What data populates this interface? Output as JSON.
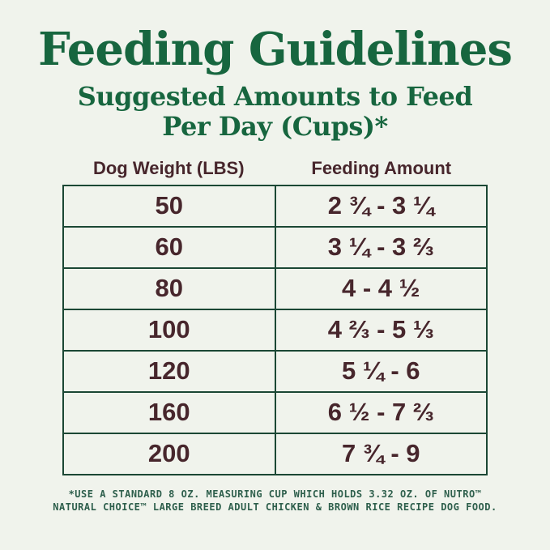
{
  "header": {
    "title": "Feeding Guidelines",
    "subtitle_line1": "Suggested Amounts to Feed",
    "subtitle_line2": "Per Day (Cups)*"
  },
  "table": {
    "col1_header": "Dog Weight (LBS)",
    "col2_header": "Feeding Amount",
    "rows": [
      {
        "weight": "50",
        "amount": "2 ¾ - 3 ¼"
      },
      {
        "weight": "60",
        "amount": "3 ¼ - 3 ⅔"
      },
      {
        "weight": "80",
        "amount": "4 - 4 ½"
      },
      {
        "weight": "100",
        "amount": "4 ⅔ - 5 ⅓"
      },
      {
        "weight": "120",
        "amount": "5 ¼ - 6"
      },
      {
        "weight": "160",
        "amount": "6 ½ - 7 ⅔"
      },
      {
        "weight": "200",
        "amount": "7 ¾ - 9"
      }
    ]
  },
  "footnote": {
    "line1": "*USE A STANDARD 8 OZ. MEASURING CUP WHICH HOLDS 3.32 OZ. OF NUTRO™",
    "line2": "NATURAL CHOICE™ LARGE BREED ADULT CHICKEN & BROWN RICE RECIPE DOG FOOD."
  },
  "colors": {
    "background": "#f0f3ec",
    "title_green": "#17663f",
    "table_border_green": "#1b4734",
    "text_maroon": "#47262c",
    "footnote_green": "#2e5f4c"
  },
  "chart_data": {
    "type": "table",
    "title": "Feeding Guidelines",
    "subtitle": "Suggested Amounts to Feed Per Day (Cups)*",
    "columns": [
      "Dog Weight (LBS)",
      "Feeding Amount"
    ],
    "rows": [
      [
        "50",
        "2 ¾ - 3 ¼"
      ],
      [
        "60",
        "3 ¼ - 3 ⅔"
      ],
      [
        "80",
        "4 - 4 ½"
      ],
      [
        "100",
        "4 ⅔ - 5 ⅓"
      ],
      [
        "120",
        "5 ¼ - 6"
      ],
      [
        "160",
        "6 ½ - 7 ⅔"
      ],
      [
        "200",
        "7 ¾ - 9"
      ]
    ],
    "footnote": "*USE A STANDARD 8 OZ. MEASURING CUP WHICH HOLDS 3.32 OZ. OF NUTRO™ NATURAL CHOICE™ LARGE BREED ADULT CHICKEN & BROWN RICE RECIPE DOG FOOD."
  }
}
